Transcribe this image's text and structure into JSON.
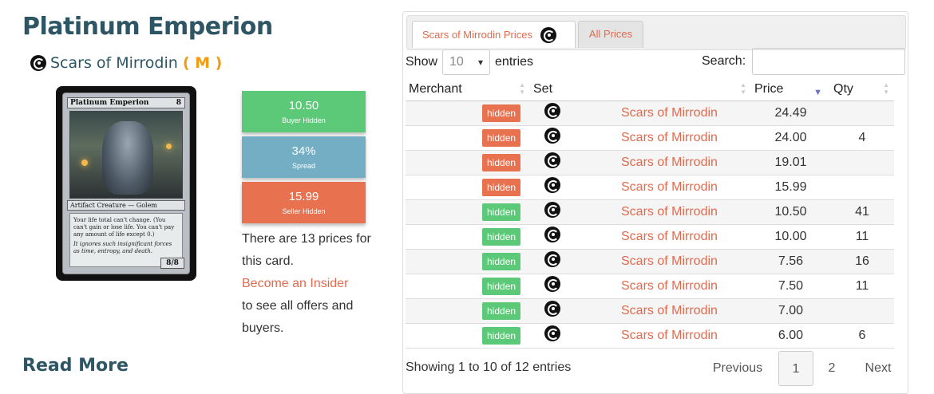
{
  "card": {
    "title": "Platinum Emperion",
    "set_name": "Scars of Mirrodin",
    "rarity": "( M )",
    "image": {
      "name": "Platinum Emperion",
      "mana": "8",
      "type_line": "Artifact Creature — Golem",
      "rules_text": "Your life total can't change. (You can't gain or lose life. You can't pay any amount of life except 0.)",
      "flavor_text": "It ignores such insignificant forces as time, entropy, and death.",
      "pt": "8/8"
    }
  },
  "price_boxes": {
    "buy": {
      "value": "10.50",
      "label": "Buyer Hidden",
      "color": "#5bc977"
    },
    "spread": {
      "value": "34%",
      "label": "Spread",
      "color": "#74aec4"
    },
    "sell": {
      "value": "15.99",
      "label": "Seller Hidden",
      "color": "#e8714f"
    }
  },
  "info": {
    "line1": "There are 13 prices for this card.",
    "link": "Become an Insider",
    "line2": "to see all offers and buyers."
  },
  "read_more": "Read More",
  "tabs": {
    "active": "Scars of Mirrodin Prices",
    "inactive": "All Prices"
  },
  "controls": {
    "show_label": "Show",
    "entries_value": "10",
    "entries_label": "entries",
    "search_label": "Search:"
  },
  "table": {
    "headers": {
      "merchant": "Merchant",
      "set": "Set",
      "price": "Price",
      "qty": "Qty"
    },
    "rows": [
      {
        "badge": "hidden",
        "badge_color": "red",
        "set": "Scars of Mirrodin",
        "price": "24.49",
        "qty": ""
      },
      {
        "badge": "hidden",
        "badge_color": "red",
        "set": "Scars of Mirrodin",
        "price": "24.00",
        "qty": "4"
      },
      {
        "badge": "hidden",
        "badge_color": "red",
        "set": "Scars of Mirrodin",
        "price": "19.01",
        "qty": ""
      },
      {
        "badge": "hidden",
        "badge_color": "red",
        "set": "Scars of Mirrodin",
        "price": "15.99",
        "qty": ""
      },
      {
        "badge": "hidden",
        "badge_color": "green",
        "set": "Scars of Mirrodin",
        "price": "10.50",
        "qty": "41"
      },
      {
        "badge": "hidden",
        "badge_color": "green",
        "set": "Scars of Mirrodin",
        "price": "10.00",
        "qty": "11"
      },
      {
        "badge": "hidden",
        "badge_color": "green",
        "set": "Scars of Mirrodin",
        "price": "7.56",
        "qty": "16"
      },
      {
        "badge": "hidden",
        "badge_color": "green",
        "set": "Scars of Mirrodin",
        "price": "7.50",
        "qty": "11"
      },
      {
        "badge": "hidden",
        "badge_color": "green",
        "set": "Scars of Mirrodin",
        "price": "7.00",
        "qty": ""
      },
      {
        "badge": "hidden",
        "badge_color": "green",
        "set": "Scars of Mirrodin",
        "price": "6.00",
        "qty": "6"
      }
    ]
  },
  "footer": {
    "showing": "Showing 1 to 10 of 12 entries",
    "previous": "Previous",
    "page1": "1",
    "page2": "2",
    "next": "Next"
  },
  "icons": {
    "set_symbol": "scars-of-mirrodin-set-icon"
  }
}
